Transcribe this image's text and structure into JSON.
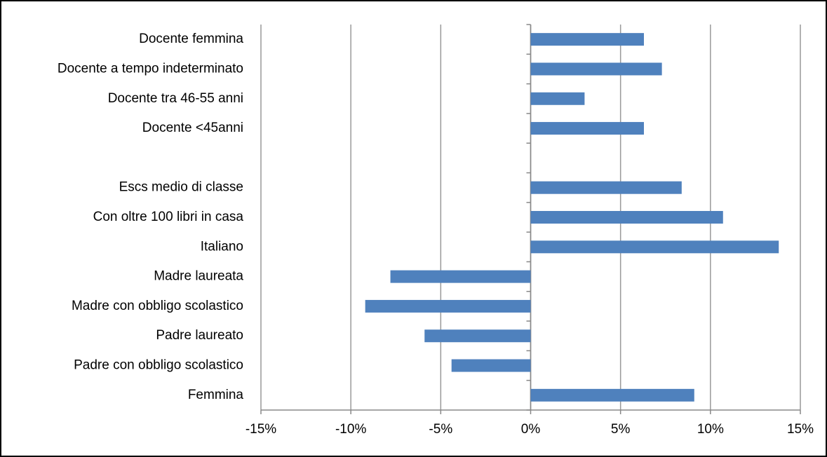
{
  "chart_data": {
    "type": "hbar",
    "categories": [
      "Docente femmina",
      "Docente a tempo indeterminato",
      "Docente tra 46-55 anni",
      "Docente <45anni",
      null,
      "Escs medio di classe",
      "Con oltre 100 libri in casa",
      "Italiano",
      "Madre laureata",
      "Madre con obbligo scolastico",
      "Padre laureato",
      "Padre con obbligo scolastico",
      "Femmina"
    ],
    "values": [
      6.3,
      7.3,
      3.0,
      6.3,
      null,
      8.4,
      10.7,
      13.8,
      -7.8,
      -9.2,
      -5.9,
      -4.4,
      9.1
    ],
    "color": "#4f81bd",
    "xlim": [
      -15,
      15
    ],
    "xticks": [
      {
        "value": -15,
        "label": "-15%"
      },
      {
        "value": -10,
        "label": "-10%"
      },
      {
        "value": -5,
        "label": "-5%"
      },
      {
        "value": 0,
        "label": "0%"
      },
      {
        "value": 5,
        "label": "5%"
      },
      {
        "value": 10,
        "label": "10%"
      },
      {
        "value": 15,
        "label": "15%"
      }
    ],
    "grid": true
  }
}
